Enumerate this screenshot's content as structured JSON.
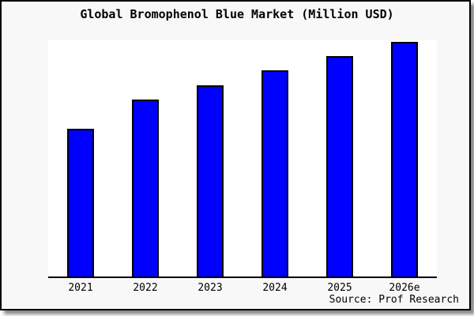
{
  "frame": {
    "title": "Global Bromophenol Blue Market (Million USD)",
    "source": "Source: Prof Research"
  },
  "colors": {
    "bar_fill": "#0000ff",
    "bar_border": "#000000",
    "box_background": "#f8f8f8",
    "plot_background": "#ffffff",
    "axis_line": "#000000",
    "text": "#000000"
  },
  "chart_data": {
    "type": "bar",
    "title": "Global Bromophenol Blue Market (Million USD)",
    "categories": [
      "2021",
      "2022",
      "2023",
      "2024",
      "2025",
      "2026e"
    ],
    "values": [
      63,
      75.5,
      81.5,
      88,
      94,
      100
    ],
    "value_note": "No y-axis scale or data labels shown; values are estimated relative bar heights as percent of the tallest (2026e) bar",
    "xlabel": "",
    "ylabel": "",
    "y_axis_shown": false,
    "gridlines": false,
    "legend": false,
    "bar_color": "#0000ff",
    "annotations": [
      "Source: Prof Research"
    ]
  }
}
